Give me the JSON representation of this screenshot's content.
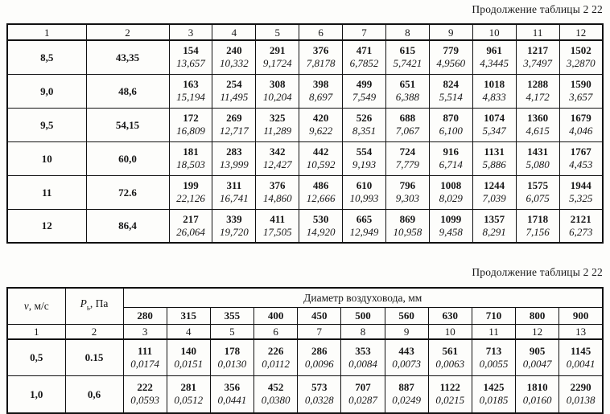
{
  "captions": {
    "table1": "Продолжение таблицы 2 22",
    "table2": "Продолжение таблицы 2 22"
  },
  "table1": {
    "column_numbers": [
      "1",
      "2",
      "3",
      "4",
      "5",
      "6",
      "7",
      "8",
      "9",
      "10",
      "11",
      "12"
    ],
    "rows": [
      {
        "col1": "8,5",
        "col2": "43,35",
        "cells": [
          [
            "154",
            "13,657"
          ],
          [
            "240",
            "10,332"
          ],
          [
            "291",
            "9,1724"
          ],
          [
            "376",
            "7,8178"
          ],
          [
            "471",
            "6,7852"
          ],
          [
            "615",
            "5,7421"
          ],
          [
            "779",
            "4,9560"
          ],
          [
            "961",
            "4,3445"
          ],
          [
            "1217",
            "3,7497"
          ],
          [
            "1502",
            "3,2870"
          ]
        ]
      },
      {
        "col1": "9,0",
        "col2": "48,6",
        "cells": [
          [
            "163",
            "15,194"
          ],
          [
            "254",
            "11,495"
          ],
          [
            "308",
            "10,204"
          ],
          [
            "398",
            "8,697"
          ],
          [
            "499",
            "7,549"
          ],
          [
            "651",
            "6,388"
          ],
          [
            "824",
            "5,514"
          ],
          [
            "1018",
            "4,833"
          ],
          [
            "1288",
            "4,172"
          ],
          [
            "1590",
            "3,657"
          ]
        ]
      },
      {
        "col1": "9,5",
        "col2": "54,15",
        "cells": [
          [
            "172",
            "16,809"
          ],
          [
            "269",
            "12,717"
          ],
          [
            "325",
            "11,289"
          ],
          [
            "420",
            "9,622"
          ],
          [
            "526",
            "8,351"
          ],
          [
            "688",
            "7,067"
          ],
          [
            "870",
            "6,100"
          ],
          [
            "1074",
            "5,347"
          ],
          [
            "1360",
            "4,615"
          ],
          [
            "1679",
            "4,046"
          ]
        ]
      },
      {
        "col1": "10",
        "col2": "60,0",
        "cells": [
          [
            "181",
            "18,503"
          ],
          [
            "283",
            "13,999"
          ],
          [
            "342",
            "12,427"
          ],
          [
            "442",
            "10,592"
          ],
          [
            "554",
            "9,193"
          ],
          [
            "724",
            "7,779"
          ],
          [
            "916",
            "6,714"
          ],
          [
            "1131",
            "5,886"
          ],
          [
            "1431",
            "5,080"
          ],
          [
            "1767",
            "4,453"
          ]
        ]
      },
      {
        "col1": "11",
        "col2": "72.6",
        "cells": [
          [
            "199",
            "22,126"
          ],
          [
            "311",
            "16,741"
          ],
          [
            "376",
            "14,860"
          ],
          [
            "486",
            "12,666"
          ],
          [
            "610",
            "10,993"
          ],
          [
            "796",
            "9,303"
          ],
          [
            "1008",
            "8,029"
          ],
          [
            "1244",
            "7,039"
          ],
          [
            "1575",
            "6,075"
          ],
          [
            "1944",
            "5,325"
          ]
        ]
      },
      {
        "col1": "12",
        "col2": "86,4",
        "cells": [
          [
            "217",
            "26,064"
          ],
          [
            "339",
            "19,720"
          ],
          [
            "411",
            "17,505"
          ],
          [
            "530",
            "14,920"
          ],
          [
            "665",
            "12,949"
          ],
          [
            "869",
            "10,958"
          ],
          [
            "1099",
            "9,458"
          ],
          [
            "1357",
            "8,291"
          ],
          [
            "1718",
            "7,156"
          ],
          [
            "2121",
            "6,273"
          ]
        ]
      }
    ]
  },
  "table2": {
    "velocity_header": {
      "symbol": "v",
      "rest": ", м/с"
    },
    "pressure_header": {
      "symbol": "P",
      "subscript": "ь",
      "rest": ", Па"
    },
    "diameter_header": "Диаметр воздуховода, мм",
    "diameters": [
      "280",
      "315",
      "355",
      "400",
      "450",
      "500",
      "560",
      "630",
      "710",
      "800",
      "900"
    ],
    "column_numbers": [
      "1",
      "2",
      "3",
      "4",
      "5",
      "6",
      "7",
      "8",
      "9",
      "10",
      "11",
      "12",
      "13"
    ],
    "rows": [
      {
        "v": "0,5",
        "p": "0.15",
        "cells": [
          [
            "111",
            "0,0174"
          ],
          [
            "140",
            "0,0151"
          ],
          [
            "178",
            "0,0130"
          ],
          [
            "226",
            "0,0112"
          ],
          [
            "286",
            "0,0096"
          ],
          [
            "353",
            "0,0084"
          ],
          [
            "443",
            "0,0073"
          ],
          [
            "561",
            "0,0063"
          ],
          [
            "713",
            "0,0055"
          ],
          [
            "905",
            "0,0047"
          ],
          [
            "1145",
            "0,0041"
          ]
        ]
      },
      {
        "v": "1,0",
        "p": "0,6",
        "cells": [
          [
            "222",
            "0,0593"
          ],
          [
            "281",
            "0,0512"
          ],
          [
            "356",
            "0,0441"
          ],
          [
            "452",
            "0,0380"
          ],
          [
            "573",
            "0,0328"
          ],
          [
            "707",
            "0,0287"
          ],
          [
            "887",
            "0,0249"
          ],
          [
            "1122",
            "0,0215"
          ],
          [
            "1425",
            "0,0185"
          ],
          [
            "1810",
            "0,0160"
          ],
          [
            "2290",
            "0,0138"
          ]
        ]
      }
    ]
  }
}
